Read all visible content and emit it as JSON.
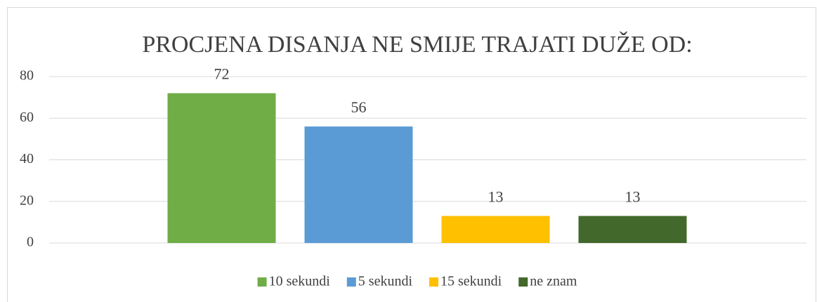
{
  "chart_data": {
    "type": "bar",
    "title": "PROCJENA DISANJA NE SMIJE TRAJATI DUŽE OD:",
    "series": [
      {
        "name": "10 sekundi",
        "color": "#70ad47",
        "values": [
          72
        ]
      },
      {
        "name": "5 sekundi",
        "color": "#5b9bd5",
        "values": [
          56
        ]
      },
      {
        "name": "15 sekundi",
        "color": "#ffc000",
        "values": [
          13
        ]
      },
      {
        "name": "ne znam",
        "color": "#43682b",
        "values": [
          13
        ]
      }
    ],
    "ylim": [
      0,
      80
    ],
    "yticks": [
      0,
      20,
      40,
      60,
      80
    ],
    "grid": true,
    "legend": "bottom"
  }
}
